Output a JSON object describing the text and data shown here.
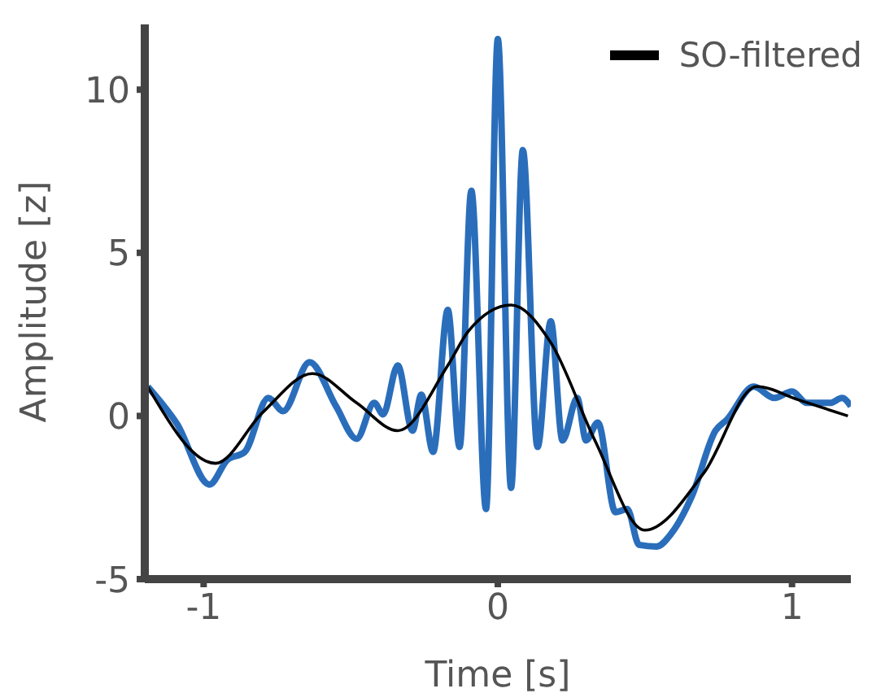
{
  "chart_data": {
    "type": "line",
    "xlabel": "Time [s]",
    "ylabel": "Amplitude [z]",
    "xlim": [
      -1.2,
      1.2
    ],
    "xticks": [
      -1,
      0,
      1
    ],
    "ylim": [
      -5,
      12
    ],
    "yticks": [
      -5,
      0,
      5,
      10
    ],
    "grid": false,
    "legend": "top right",
    "marker": "none",
    "line_style": "solid",
    "series": [
      {
        "color": "#2a6ebb",
        "x": [
          -1.19,
          -1.09,
          -0.98,
          -0.92,
          -0.86,
          -0.78,
          -0.73,
          -0.64,
          -0.55,
          -0.48,
          -0.42,
          -0.39,
          -0.34,
          -0.29,
          -0.26,
          -0.22,
          -0.17,
          -0.13,
          -0.09,
          -0.04,
          0,
          0.045,
          0.085,
          0.135,
          0.18,
          0.22,
          0.27,
          0.3,
          0.34,
          0.4,
          0.44,
          0.48,
          0.54,
          0.59,
          0.66,
          0.74,
          0.78,
          0.87,
          0.94,
          1.0,
          1.05,
          1.13,
          1.17,
          1.2
        ],
        "values": [
          0.9,
          -0.25,
          -2.1,
          -1.35,
          -1.1,
          0.55,
          0.15,
          1.65,
          0.3,
          -0.7,
          0.4,
          0.05,
          1.55,
          -0.45,
          0.65,
          -1.1,
          3.25,
          -0.95,
          6.9,
          -2.85,
          11.55,
          -2.2,
          8.15,
          -0.95,
          2.9,
          -0.75,
          0.55,
          -0.75,
          -0.2,
          -2.95,
          -2.85,
          -3.95,
          -4.0,
          -3.6,
          -2.45,
          -0.45,
          -0.1,
          0.9,
          0.55,
          0.75,
          0.4,
          0.4,
          0.55,
          0.3
        ]
      },
      {
        "name": "SO-filtered",
        "color": "#000000",
        "x": [
          -1.19,
          -0.96,
          -0.8,
          -0.63,
          -0.48,
          -0.34,
          -0.17,
          -0.1,
          0.045,
          0.18,
          0.33,
          0.5,
          0.7,
          0.88,
          1.02,
          1.19
        ],
        "values": [
          0.9,
          -1.45,
          0.1,
          1.3,
          0.4,
          -0.45,
          1.55,
          2.6,
          3.4,
          2.25,
          -0.75,
          -3.5,
          -1.75,
          0.9,
          0.5,
          0.0
        ]
      }
    ]
  }
}
